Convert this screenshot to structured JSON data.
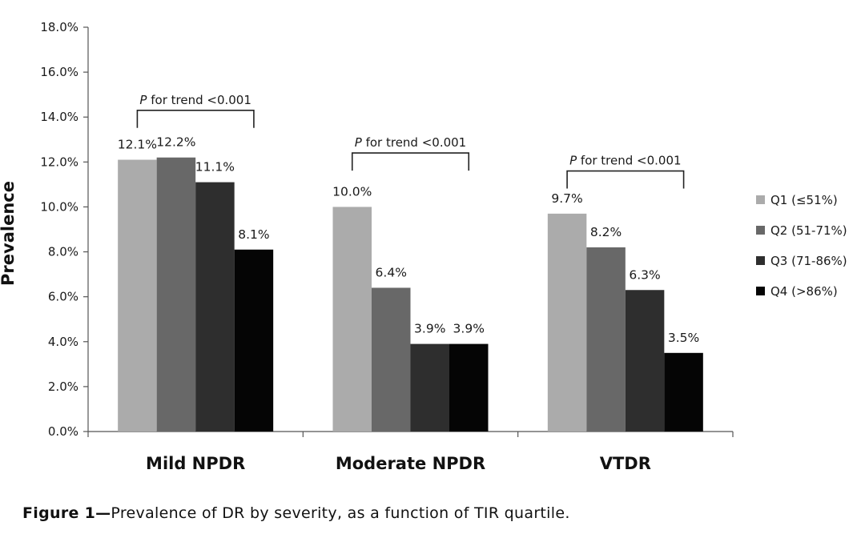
{
  "chart_data": {
    "type": "bar",
    "title": "",
    "xlabel": "",
    "ylabel": "Prevalence",
    "ylim": [
      0,
      18
    ],
    "yticks": [
      "0.0%",
      "2.0%",
      "4.0%",
      "6.0%",
      "8.0%",
      "10.0%",
      "12.0%",
      "14.0%",
      "16.0%",
      "18.0%"
    ],
    "categories": [
      "Mild NPDR",
      "Moderate NPDR",
      "VTDR"
    ],
    "series": [
      {
        "name": "Q1 (≤51%)",
        "color": "#ababab",
        "values": [
          12.1,
          10.0,
          9.7
        ],
        "labels": [
          "12.1%",
          "10.0%",
          "9.7%"
        ]
      },
      {
        "name": "Q2 (51-71%)",
        "color": "#686868",
        "values": [
          12.2,
          6.4,
          8.2
        ],
        "labels": [
          "12.2%",
          "6.4%",
          "8.2%"
        ]
      },
      {
        "name": "Q3 (71-86%)",
        "color": "#2e2e2e",
        "values": [
          11.1,
          3.9,
          6.3
        ],
        "labels": [
          "11.1%",
          "3.9%",
          "6.3%"
        ]
      },
      {
        "name": "Q4 (>86%)",
        "color": "#050505",
        "values": [
          8.1,
          3.9,
          3.5
        ],
        "labels": [
          "8.1%",
          "3.9%",
          "3.5%"
        ]
      }
    ],
    "annotations": [
      {
        "category": "Mild NPDR",
        "text_p": "P",
        "text_rest": " for trend <0.001",
        "level": 14.3
      },
      {
        "category": "Moderate NPDR",
        "text_p": "P",
        "text_rest": " for trend <0.001",
        "level": 12.4
      },
      {
        "category": "VTDR",
        "text_p": "P",
        "text_rest": " for trend <0.001",
        "level": 11.6
      }
    ],
    "legend_position": "right",
    "grid": false
  },
  "caption": {
    "label": "Figure 1—",
    "text": "Prevalence of DR by severity, as a function of TIR quartile."
  }
}
